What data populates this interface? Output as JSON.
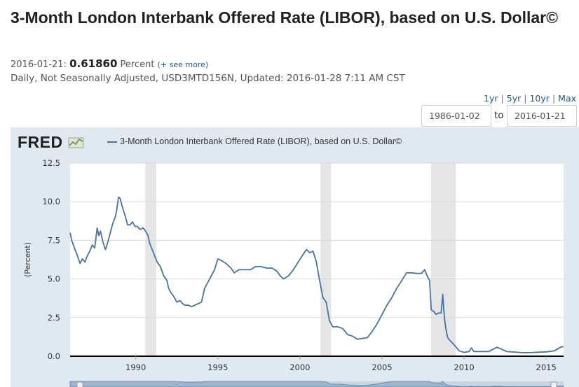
{
  "header": {
    "title": "3-Month London Interbank Offered Rate (LIBOR), based on U.S. Dollar©",
    "latest_date": "2016-01-21:",
    "latest_value": "0.61860",
    "latest_units": "Percent",
    "see_more": "(+ see more)",
    "meta": "Daily, Not Seasonally Adjusted, USD3MTD156N, Updated: 2016-01-28 7:11 AM CST"
  },
  "controls": {
    "range_links": [
      "1yr",
      "5yr",
      "10yr",
      "Max"
    ],
    "start_date": "1986-01-02",
    "to_label": "to",
    "end_date": "2016-01-21"
  },
  "graph": {
    "logo": "FRED",
    "legend_label": "3-Month London Interbank Offered Rate (LIBOR), based on U.S. Dollar©"
  },
  "chart_data": {
    "type": "line",
    "title": "",
    "xlabel": "",
    "ylabel": "(Percent)",
    "xlim": [
      1986.0,
      2016.06
    ],
    "ylim": [
      0,
      12.5
    ],
    "yticks": [
      "0.0",
      "2.5",
      "5.0",
      "7.5",
      "10.0",
      "12.5"
    ],
    "xticks": [
      "1990",
      "1995",
      "2000",
      "2005",
      "2010",
      "2015"
    ],
    "grid": true,
    "legend_position": "top-left",
    "colors": {
      "line": "#4572a7",
      "recession": "#e5e5e5",
      "panel": "#e1e9f0"
    },
    "recessions": [
      [
        1990.58,
        1991.25
      ],
      [
        2001.25,
        2001.9
      ],
      [
        2007.99,
        2009.5
      ]
    ],
    "series": [
      {
        "name": "3-Month London Interbank Offered Rate (LIBOR), based on U.S. Dollar©",
        "x": [
          1986.0,
          1986.1,
          1986.3,
          1986.45,
          1986.6,
          1986.75,
          1986.9,
          1987.05,
          1987.2,
          1987.35,
          1987.5,
          1987.65,
          1987.75,
          1987.85,
          1988.0,
          1988.15,
          1988.3,
          1988.45,
          1988.6,
          1988.75,
          1988.85,
          1988.95,
          1989.05,
          1989.2,
          1989.35,
          1989.5,
          1989.65,
          1989.8,
          1989.95,
          1990.1,
          1990.25,
          1990.45,
          1990.6,
          1990.75,
          1990.85,
          1991.0,
          1991.15,
          1991.3,
          1991.5,
          1991.7,
          1991.9,
          1992.0,
          1992.15,
          1992.3,
          1992.5,
          1992.7,
          1992.85,
          1993.0,
          1993.2,
          1993.4,
          1993.6,
          1993.8,
          1994.0,
          1994.2,
          1994.4,
          1994.6,
          1994.8,
          1995.0,
          1995.2,
          1995.5,
          1995.8,
          1996.0,
          1996.3,
          1996.6,
          1997.0,
          1997.3,
          1997.6,
          1998.0,
          1998.3,
          1998.6,
          1998.8,
          1999.0,
          1999.3,
          1999.6,
          1999.9,
          2000.2,
          2000.4,
          2000.6,
          2000.8,
          2001.0,
          2001.2,
          2001.4,
          2001.6,
          2001.8,
          2002.0,
          2002.3,
          2002.6,
          2002.9,
          2003.2,
          2003.5,
          2003.8,
          2004.1,
          2004.4,
          2004.7,
          2005.0,
          2005.3,
          2005.6,
          2005.9,
          2006.2,
          2006.5,
          2006.8,
          2007.1,
          2007.4,
          2007.6,
          2007.75,
          2007.9,
          2008.0,
          2008.15,
          2008.3,
          2008.45,
          2008.6,
          2008.7,
          2008.8,
          2008.9,
          2009.0,
          2009.15,
          2009.3,
          2009.5,
          2009.7,
          2010.0,
          2010.3,
          2010.45,
          2010.6,
          2011.0,
          2011.5,
          2011.8,
          2012.0,
          2012.3,
          2012.6,
          2013.0,
          2013.5,
          2014.0,
          2014.5,
          2015.0,
          2015.5,
          2015.9,
          2016.05
        ],
        "y": [
          8.0,
          7.5,
          6.9,
          6.5,
          6.0,
          6.3,
          6.1,
          6.5,
          6.8,
          7.2,
          7.0,
          8.3,
          7.8,
          8.1,
          7.4,
          6.9,
          7.4,
          8.0,
          8.6,
          9.0,
          9.5,
          10.3,
          10.2,
          9.6,
          9.1,
          8.5,
          8.5,
          8.7,
          8.4,
          8.4,
          8.2,
          8.3,
          8.1,
          7.8,
          7.3,
          6.9,
          6.5,
          6.1,
          5.8,
          5.2,
          4.9,
          4.4,
          4.1,
          3.9,
          3.5,
          3.6,
          3.4,
          3.3,
          3.3,
          3.2,
          3.3,
          3.4,
          3.5,
          4.4,
          4.8,
          5.2,
          5.6,
          6.3,
          6.2,
          6.0,
          5.7,
          5.4,
          5.6,
          5.6,
          5.6,
          5.8,
          5.8,
          5.7,
          5.7,
          5.5,
          5.2,
          5.0,
          5.2,
          5.6,
          6.1,
          6.6,
          6.9,
          6.7,
          6.8,
          6.1,
          4.9,
          3.8,
          3.5,
          2.3,
          1.9,
          1.9,
          1.8,
          1.4,
          1.3,
          1.1,
          1.15,
          1.2,
          1.6,
          2.1,
          2.7,
          3.3,
          3.8,
          4.4,
          4.9,
          5.4,
          5.4,
          5.36,
          5.36,
          5.6,
          5.2,
          4.9,
          3.0,
          2.9,
          2.7,
          2.8,
          2.8,
          4.0,
          2.5,
          1.7,
          1.2,
          1.0,
          0.85,
          0.6,
          0.35,
          0.25,
          0.3,
          0.53,
          0.3,
          0.3,
          0.3,
          0.47,
          0.58,
          0.45,
          0.3,
          0.27,
          0.23,
          0.23,
          0.26,
          0.28,
          0.35,
          0.6,
          0.62
        ]
      }
    ]
  }
}
